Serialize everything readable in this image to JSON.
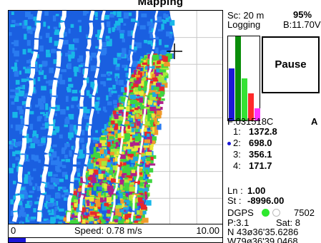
{
  "title": "Mapping",
  "speed": {
    "min": "0",
    "label": "Speed: 0.78 m/s",
    "max": "10.00",
    "progress": 0.08,
    "fill_color": "#1b17d6"
  },
  "status": {
    "scale": "Sc:  20 m",
    "battery_pct": "95%",
    "logging": "Logging",
    "battery_v": "B:11.70V"
  },
  "pause_label": "Pause",
  "file": {
    "name": "F:031518C",
    "mode": "A"
  },
  "channels": [
    {
      "label": "1:",
      "value": "1372.8",
      "selected": false
    },
    {
      "label": "2:",
      "value": "698.0",
      "selected": true
    },
    {
      "label": "3:",
      "value": "356.1",
      "selected": false
    },
    {
      "label": "4:",
      "value": "171.7",
      "selected": false
    }
  ],
  "ln": {
    "label": "Ln :",
    "value": "1.00"
  },
  "st": {
    "label": "St :",
    "value": "-8996.00"
  },
  "gps": {
    "type": "DGPS",
    "station": "7502",
    "pdop": "P:3.1",
    "sat": "Sat:  8",
    "lat": "N 43ø36'35.6286",
    "lon": "W79ø36'39.0468",
    "dot_colors": [
      "#2ee82e",
      "#ffffff"
    ]
  },
  "graph_colors": [
    "#1b17d6",
    "#0a8d0a",
    "#34e334",
    "#ff2b2b",
    "#ff33ff"
  ],
  "graph_levels": [
    0.62,
    1.0,
    0.5,
    0.32,
    0.14
  ]
}
